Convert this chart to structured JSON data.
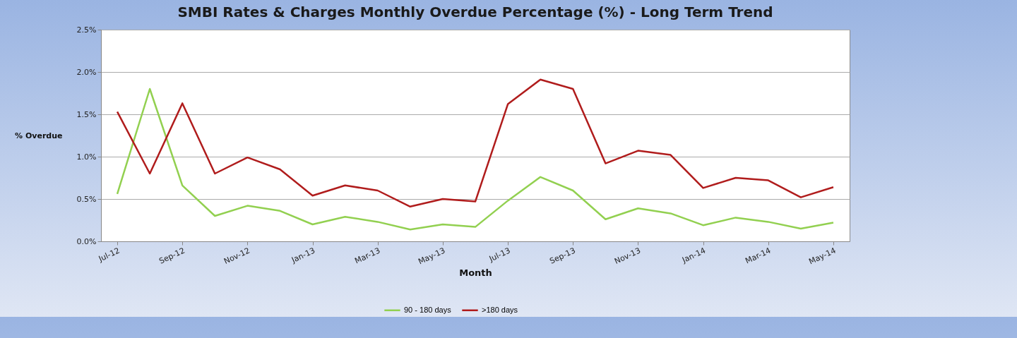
{
  "chart_data": {
    "type": "line",
    "title": "SMBI Rates & Charges Monthly Overdue Percentage  (%) - Long Term Trend",
    "xlabel": "Month",
    "ylabel": "% Overdue",
    "categories": [
      "Jul-12",
      null,
      "Sep-12",
      null,
      "Nov-12",
      null,
      "Jan-13",
      null,
      "Mar-13",
      null,
      "May-13",
      null,
      "Jul-13",
      null,
      "Sep-13",
      null,
      "Nov-13",
      null,
      "Jan-14",
      null,
      "Mar-14",
      null,
      "May-14"
    ],
    "series": [
      {
        "name": "90 - 180 days",
        "color": "#92d050",
        "values": [
          0.56,
          1.8,
          0.66,
          0.3,
          0.42,
          0.36,
          0.2,
          0.29,
          0.23,
          0.14,
          0.2,
          0.17,
          0.48,
          0.76,
          0.6,
          0.26,
          0.39,
          0.33,
          0.19,
          0.28,
          0.23,
          0.15,
          0.22
        ]
      },
      {
        "name": ">180 days",
        "color": "#b01c1c",
        "values": [
          1.53,
          0.8,
          1.63,
          0.8,
          0.99,
          0.85,
          0.54,
          0.66,
          0.6,
          0.41,
          0.5,
          0.47,
          1.62,
          1.91,
          1.8,
          0.92,
          1.07,
          1.02,
          0.63,
          0.75,
          0.72,
          0.52,
          0.64
        ]
      }
    ],
    "ylim": [
      0,
      2.5
    ],
    "yticks": [
      {
        "value": 0,
        "label": "0.0%"
      },
      {
        "value": 0.5,
        "label": "0.5%"
      },
      {
        "value": 1,
        "label": "1.0%"
      },
      {
        "value": 1.5,
        "label": "1.5%"
      },
      {
        "value": 2,
        "label": "2.0%"
      },
      {
        "value": 2.5,
        "label": "2.5%"
      }
    ],
    "grid": "y",
    "legend": "bottom",
    "marker": "none",
    "line_style": "solid"
  }
}
